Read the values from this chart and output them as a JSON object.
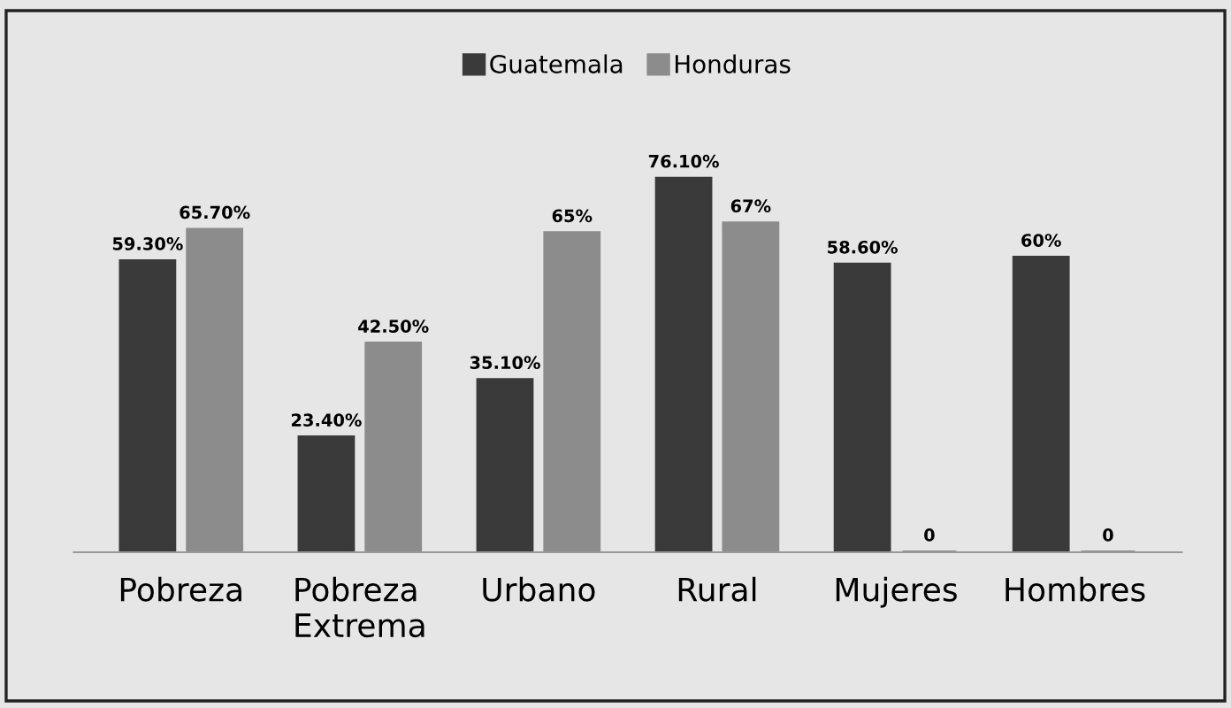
{
  "chart_data": {
    "type": "bar",
    "categories": [
      "Pobreza",
      "Pobreza\nExtrema",
      "Urbano",
      "Rural",
      "Mujeres",
      "Hombres"
    ],
    "series": [
      {
        "name": "Guatemala",
        "color": "#3a3a3a",
        "values": [
          59.3,
          23.4,
          35.1,
          76.1,
          58.6,
          60
        ],
        "value_labels": [
          "59.30%",
          "23.40%",
          "35.10%",
          "76.10%",
          "58.60%",
          "60%"
        ]
      },
      {
        "name": "Honduras",
        "color": "#8c8c8c",
        "values": [
          65.7,
          42.5,
          65,
          67,
          0,
          0
        ],
        "value_labels": [
          "65.70%",
          "42.50%",
          "65%",
          "67%",
          "0",
          "0"
        ]
      }
    ],
    "legend": "top",
    "grid": false
  }
}
